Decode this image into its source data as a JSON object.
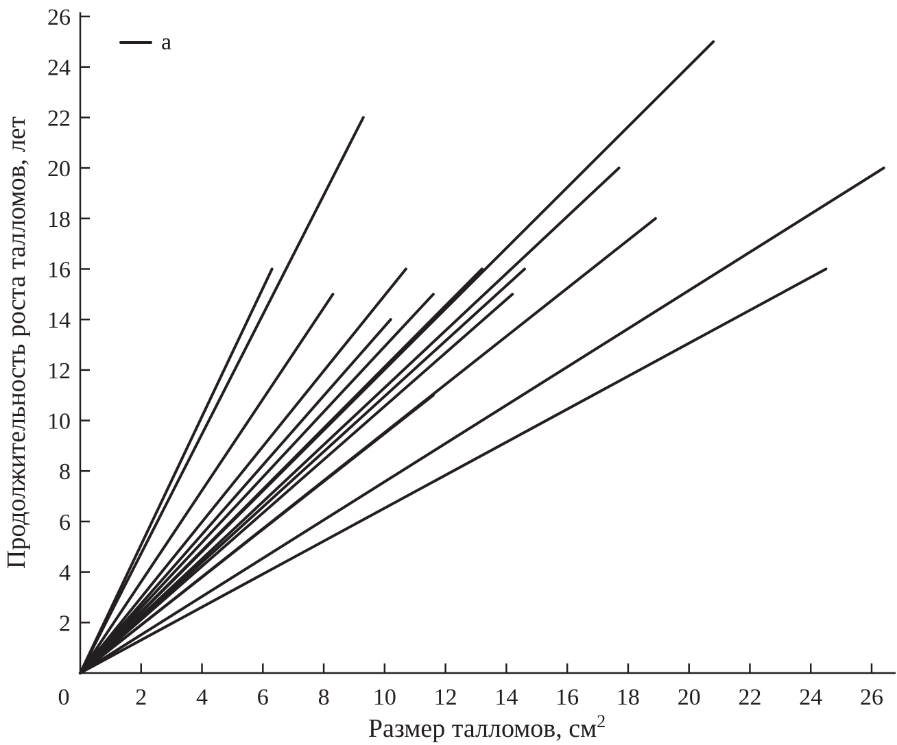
{
  "chart_data": {
    "type": "line",
    "xlabel": "Размер талломов, см",
    "xlabel_superscript": "2",
    "ylabel": "Продолжительность роста талломов, лет",
    "xlim": [
      0,
      26
    ],
    "ylim": [
      0,
      26
    ],
    "x_ticks": [
      "0",
      "2",
      "4",
      "6",
      "8",
      "10",
      "12",
      "14",
      "16",
      "18",
      "20",
      "22",
      "24",
      "26"
    ],
    "y_ticks": [
      "2",
      "4",
      "6",
      "8",
      "10",
      "12",
      "14",
      "16",
      "18",
      "20",
      "22",
      "24",
      "26"
    ],
    "grid": false,
    "legend": {
      "position": "top-left",
      "entries": [
        "a"
      ]
    },
    "series": [
      {
        "x": [
          0,
          6.3
        ],
        "y": [
          0,
          16
        ]
      },
      {
        "x": [
          0,
          9.3
        ],
        "y": [
          0,
          22
        ]
      },
      {
        "x": [
          0,
          8.3
        ],
        "y": [
          0,
          15
        ]
      },
      {
        "x": [
          0,
          10.7
        ],
        "y": [
          0,
          16
        ]
      },
      {
        "x": [
          0,
          10.2
        ],
        "y": [
          0,
          14
        ]
      },
      {
        "x": [
          0,
          11.6
        ],
        "y": [
          0,
          15
        ]
      },
      {
        "x": [
          0,
          13.2
        ],
        "y": [
          0,
          16
        ]
      },
      {
        "x": [
          0,
          14.6
        ],
        "y": [
          0,
          16
        ]
      },
      {
        "x": [
          0,
          14.2
        ],
        "y": [
          0,
          15
        ]
      },
      {
        "x": [
          0,
          11.6
        ],
        "y": [
          0,
          11
        ]
      },
      {
        "x": [
          0,
          17.7
        ],
        "y": [
          0,
          20
        ]
      },
      {
        "x": [
          0,
          20.8
        ],
        "y": [
          0,
          25
        ]
      },
      {
        "x": [
          0,
          18.9
        ],
        "y": [
          0,
          18
        ]
      },
      {
        "x": [
          0,
          26.4
        ],
        "y": [
          0,
          20
        ]
      },
      {
        "x": [
          0,
          24.5
        ],
        "y": [
          0,
          16
        ]
      }
    ],
    "colors": {
      "ink": "#231f20",
      "background": "#ffffff"
    }
  }
}
